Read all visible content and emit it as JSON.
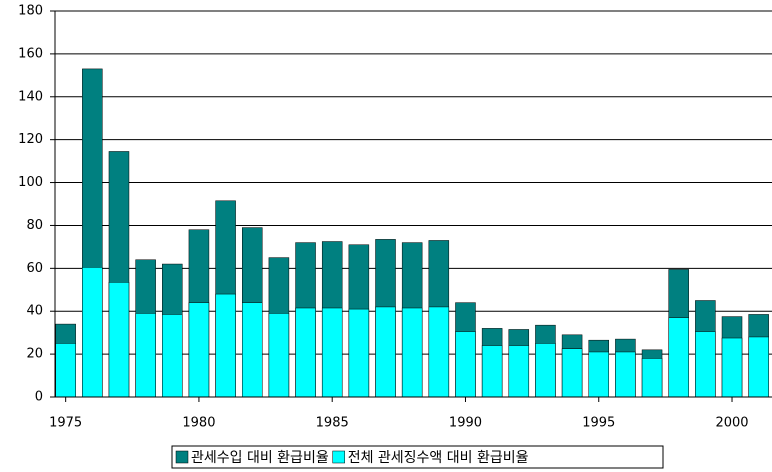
{
  "chart_data": {
    "type": "bar",
    "x": [
      1975,
      1976,
      1977,
      1978,
      1979,
      1980,
      1981,
      1982,
      1983,
      1984,
      1985,
      1986,
      1987,
      1988,
      1989,
      1990,
      1991,
      1992,
      1993,
      1994,
      1995,
      1996,
      1997,
      1998,
      1999,
      2000,
      2001
    ],
    "series": [
      {
        "name": "관세수입 대비 환급비율",
        "color": "#008080",
        "values": [
          34,
          153,
          114.5,
          64,
          62,
          78,
          91.5,
          79,
          65,
          72,
          72.5,
          71,
          73.5,
          72,
          73,
          44,
          32,
          31.5,
          33.5,
          29,
          26.5,
          27,
          22,
          59.5,
          45,
          37.5,
          38.5
        ]
      },
      {
        "name": "전체 관세징수액 대비 환급비율",
        "color": "#00ffff",
        "values": [
          25,
          60.5,
          53.5,
          39,
          38.5,
          44,
          48,
          44,
          39,
          41.5,
          41.5,
          41,
          42,
          41.5,
          42,
          30.5,
          24,
          24,
          25,
          22.5,
          21,
          21,
          18,
          37,
          30.5,
          27.5,
          28
        ]
      }
    ],
    "xlim": [
      1974.6,
      2001.5
    ],
    "xticks": [
      1975,
      1980,
      1985,
      1990,
      1995,
      2000
    ],
    "ylim": [
      0,
      180
    ],
    "yticks": [
      0,
      20,
      40,
      60,
      80,
      100,
      120,
      140,
      160,
      180
    ],
    "grid": true
  }
}
